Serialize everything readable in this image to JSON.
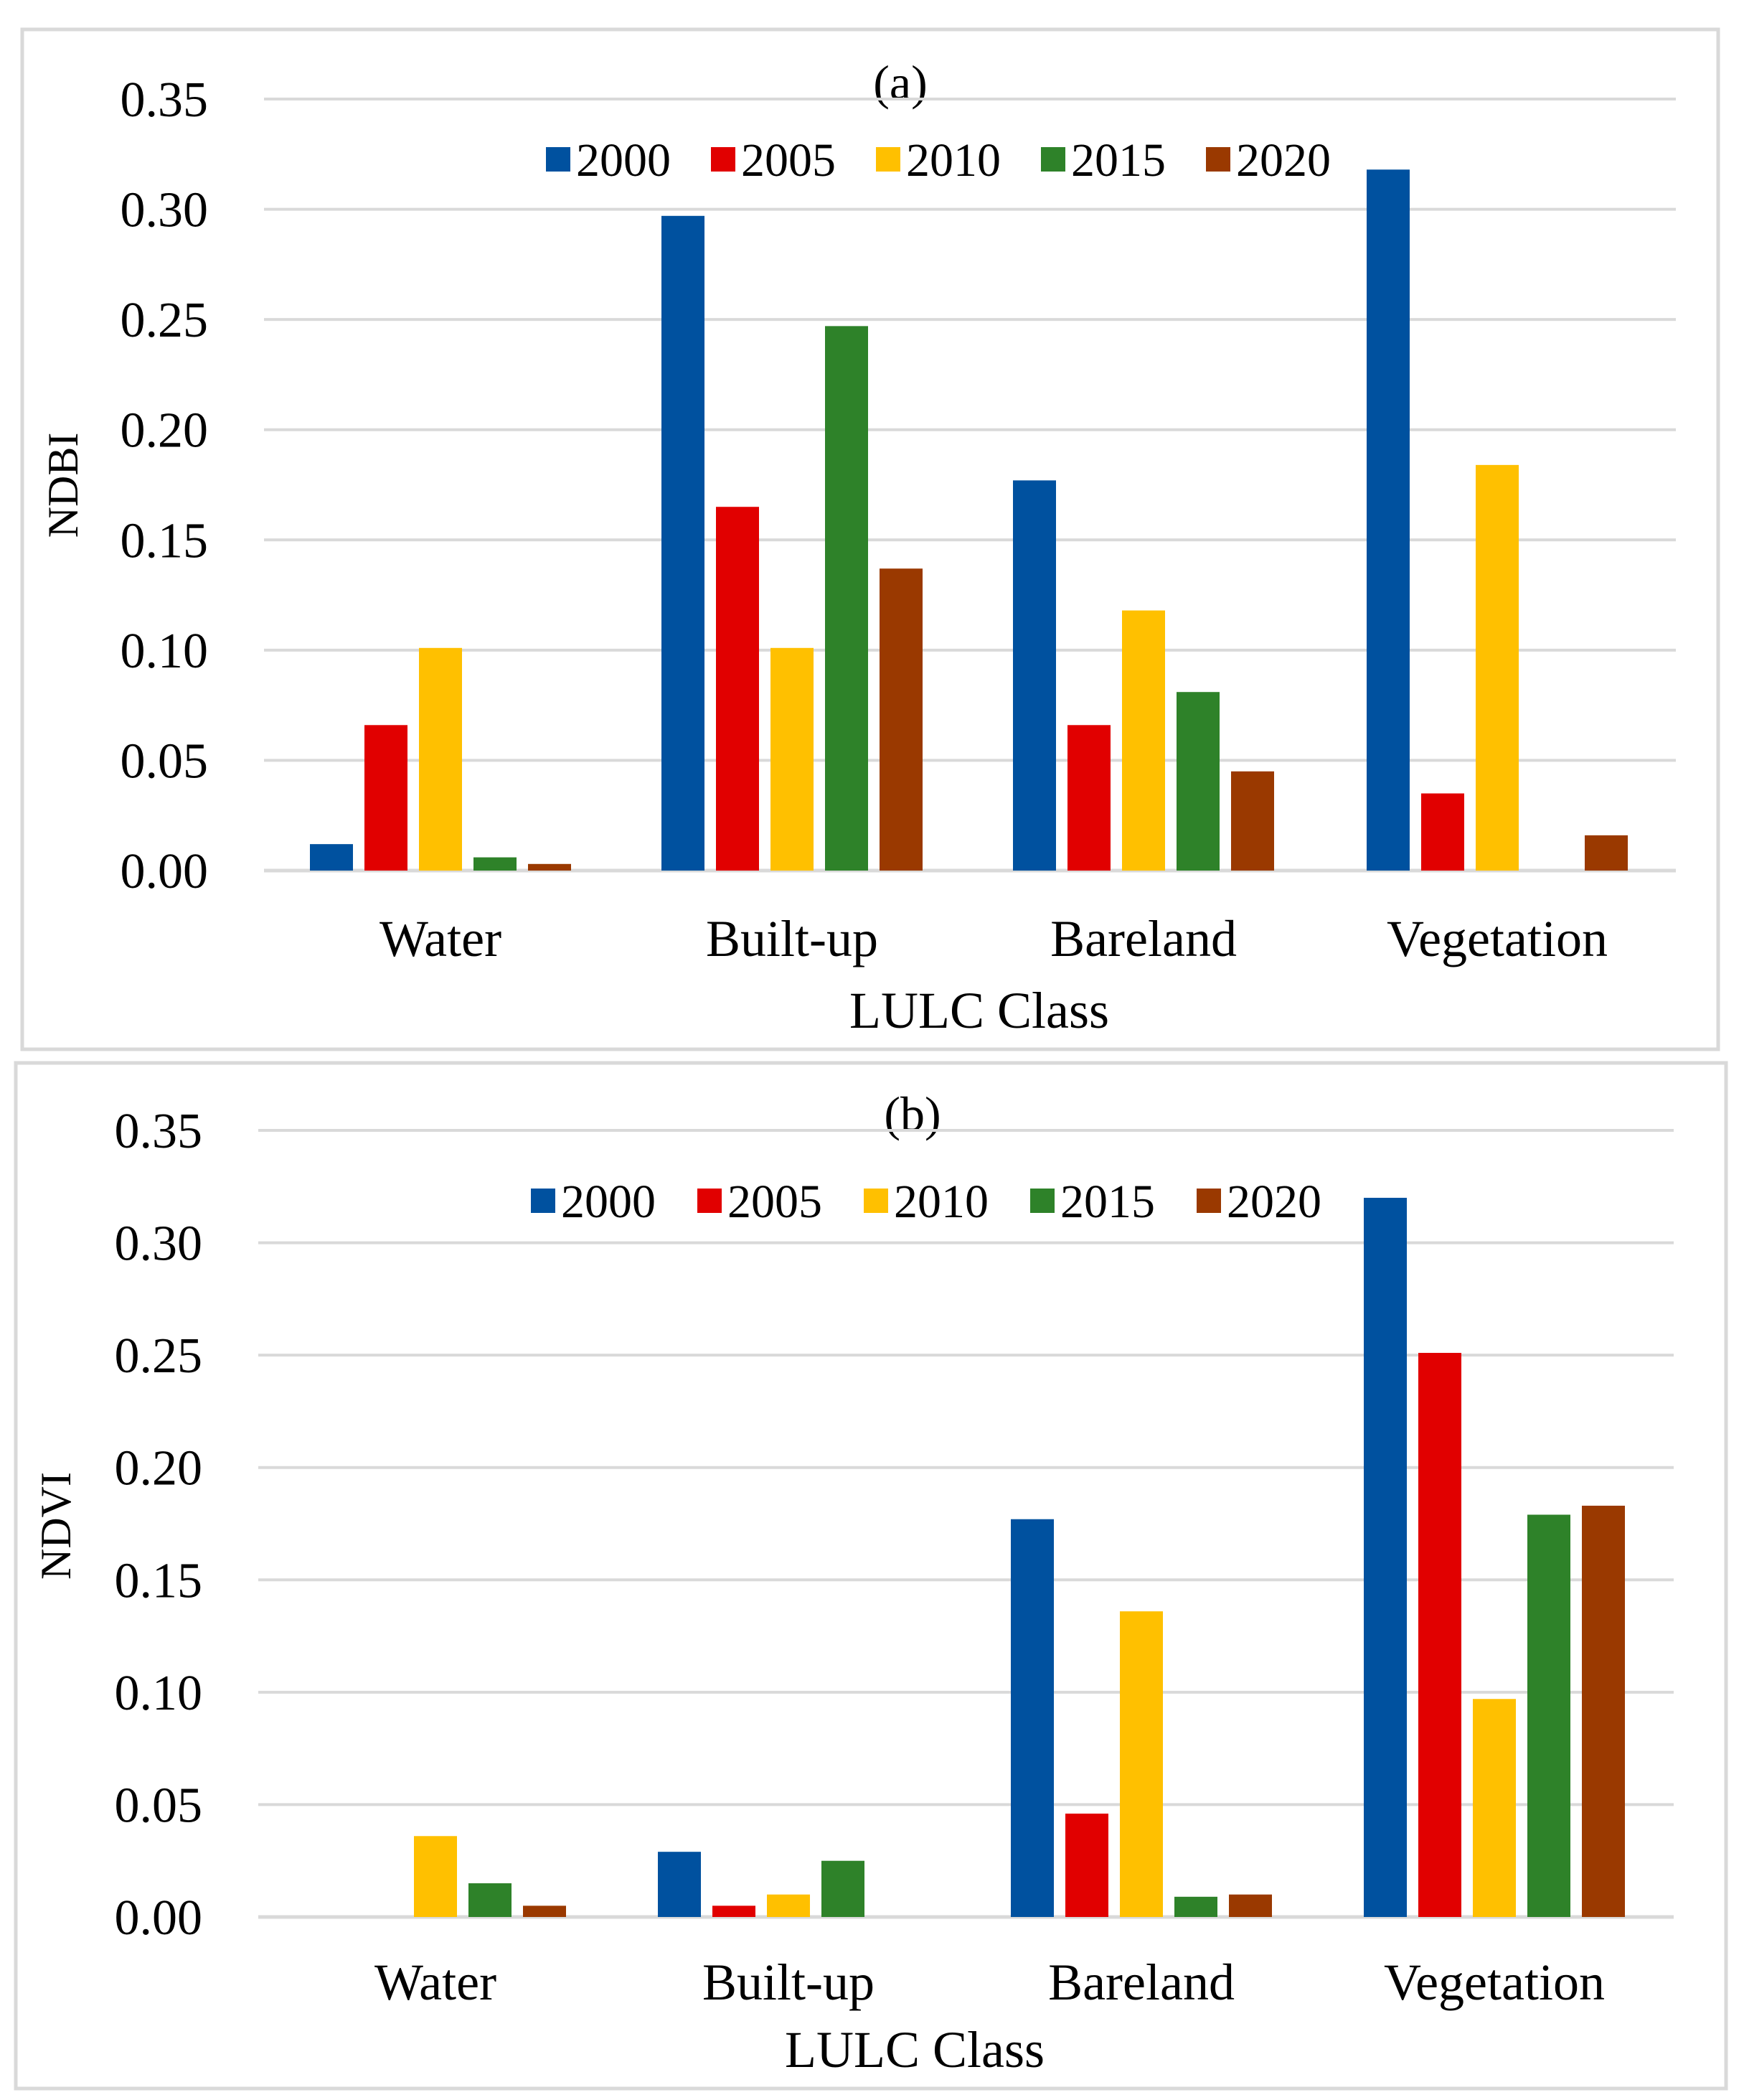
{
  "chart_data": [
    {
      "type": "bar",
      "title": "(a)",
      "xlabel": "LULC Class",
      "ylabel": "NDBI",
      "categories": [
        "Water",
        "Built-up",
        "Bareland",
        "Vegetation"
      ],
      "ylim": [
        0,
        0.35
      ],
      "yticks": [
        "0.00",
        "0.05",
        "0.10",
        "0.15",
        "0.20",
        "0.25",
        "0.30",
        "0.35"
      ],
      "grid": true,
      "legend_position": "top-center",
      "series": [
        {
          "name": "2000",
          "color": "#00519F",
          "values": [
            0.012,
            0.297,
            0.177,
            0.318
          ]
        },
        {
          "name": "2005",
          "color": "#E10000",
          "values": [
            0.066,
            0.165,
            0.066,
            0.035
          ]
        },
        {
          "name": "2010",
          "color": "#FFC000",
          "values": [
            0.101,
            0.101,
            0.118,
            0.184
          ]
        },
        {
          "name": "2015",
          "color": "#2E8229",
          "values": [
            0.006,
            0.247,
            0.081,
            0.0
          ]
        },
        {
          "name": "2020",
          "color": "#9A3900",
          "values": [
            0.003,
            0.137,
            0.045,
            0.016
          ]
        }
      ]
    },
    {
      "type": "bar",
      "title": "(b)",
      "xlabel": "LULC Class",
      "ylabel": "NDVI",
      "categories": [
        "Water",
        "Built-up",
        "Bareland",
        "Vegetation"
      ],
      "ylim": [
        0,
        0.35
      ],
      "yticks": [
        "0.00",
        "0.05",
        "0.10",
        "0.15",
        "0.20",
        "0.25",
        "0.30",
        "0.35"
      ],
      "grid": true,
      "legend_position": "top-center",
      "series": [
        {
          "name": "2000",
          "color": "#00519F",
          "values": [
            0.0,
            0.029,
            0.177,
            0.32
          ]
        },
        {
          "name": "2005",
          "color": "#E10000",
          "values": [
            0.0,
            0.005,
            0.046,
            0.251
          ]
        },
        {
          "name": "2010",
          "color": "#FFC000",
          "values": [
            0.036,
            0.01,
            0.136,
            0.097
          ]
        },
        {
          "name": "2015",
          "color": "#2E8229",
          "values": [
            0.015,
            0.025,
            0.009,
            0.179
          ]
        },
        {
          "name": "2020",
          "color": "#9A3900",
          "values": [
            0.005,
            0.0,
            0.01,
            0.183
          ]
        }
      ]
    }
  ]
}
